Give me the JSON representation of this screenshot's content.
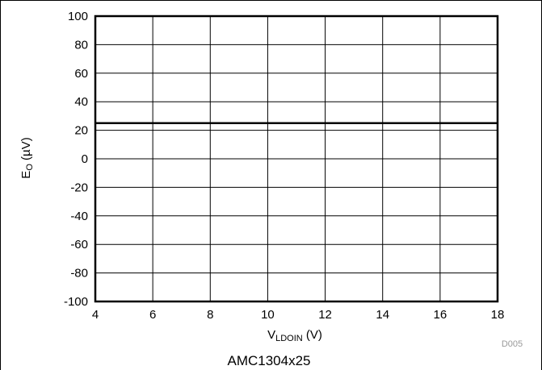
{
  "chart_data": {
    "type": "line",
    "xlabel": {
      "main": "V",
      "sub": "LDOIN",
      "unit": " (V)"
    },
    "ylabel": {
      "main": "E",
      "sub": "O",
      "unit": " (µV)"
    },
    "xlim": [
      4,
      18
    ],
    "ylim": [
      -100,
      100
    ],
    "xticks": [
      4,
      6,
      8,
      10,
      12,
      14,
      16,
      18
    ],
    "yticks": [
      100,
      80,
      60,
      40,
      20,
      0,
      -20,
      -40,
      -60,
      -80,
      -100
    ],
    "grid": true,
    "series": [
      {
        "x": [
          4,
          18
        ],
        "y": [
          25,
          25
        ]
      }
    ]
  },
  "figure_id": "D005",
  "caption": "AMC1304x25",
  "colors": {
    "line": "#000000",
    "grid": "#000000"
  }
}
